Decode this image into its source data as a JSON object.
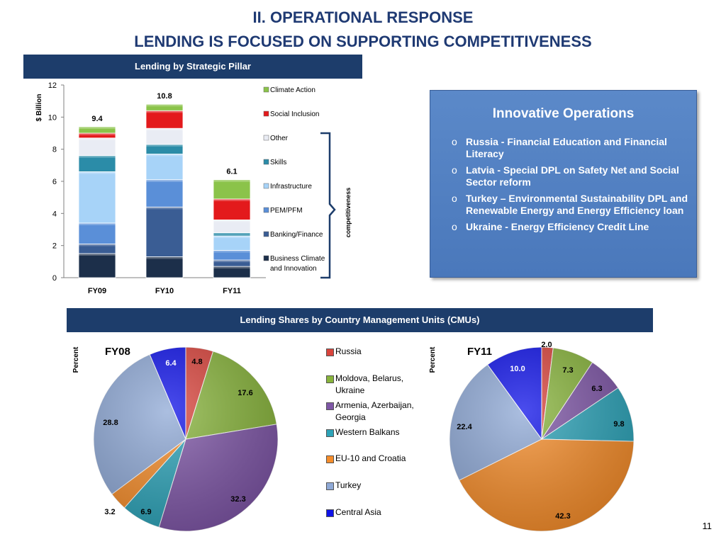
{
  "slide": {
    "title_line1": "II. OPERATIONAL RESPONSE",
    "title_line2": "LENDING IS FOCUSED ON SUPPORTING COMPETITIVENESS",
    "page_number": "11"
  },
  "bar_section": {
    "header": "Lending by Strategic Pillar",
    "brace_label": "competitiveness",
    "colors": {
      "Business Climate and Innovation": "#1c2f4a",
      "Banking/Finance": "#3a5d94",
      "PEM/PFM": "#5a8fd8",
      "Infrastructure": "#a7d3f8",
      "Skills": "#2b8ca8",
      "Other": "#e9ecf4",
      "Social Inclusion": "#e31a1c",
      "Climate Action": "#8bc34a"
    }
  },
  "pie_section": {
    "header": "Lending Shares by Country Management Units (CMUs)",
    "colors": {
      "Russia": "#d9443c",
      "Moldova, Belarus, Ukraine": "#88b43c",
      "Armenia, Azerbaijan, Georgia": "#7e56a6",
      "Western Balkans": "#2da3b8",
      "EU-10 and Croatia": "#f58d2b",
      "Turkey": "#8fa9d6",
      "Central Asia": "#0f12e8"
    }
  },
  "innovative": {
    "title": "Innovative Operations",
    "bullet_glyph": "o",
    "items": [
      "Russia - Financial Education and Financial Literacy",
      "Latvia - Special DPL on Safety Net and Social Sector reform",
      "Turkey – Environmental Sustainability DPL and Renewable Energy and Energy Efficiency loan",
      "Ukraine - Energy Efficiency Credit Line"
    ]
  },
  "chart_data": [
    {
      "type": "bar",
      "stacked": true,
      "title": "",
      "xlabel": "",
      "ylabel": "$ Billion",
      "ylim": [
        0,
        12
      ],
      "yticks": [
        0,
        2,
        4,
        6,
        8,
        10,
        12
      ],
      "categories": [
        "FY09",
        "FY10",
        "FY11"
      ],
      "totals": [
        "9.4",
        "10.8",
        "6.1"
      ],
      "legend_position": "right",
      "series": [
        {
          "name": "Business Climate and Innovation",
          "values": [
            1.5,
            1.3,
            0.7
          ]
        },
        {
          "name": "Banking/Finance",
          "values": [
            0.6,
            3.1,
            0.4
          ]
        },
        {
          "name": "PEM/PFM",
          "values": [
            1.3,
            1.7,
            0.6
          ]
        },
        {
          "name": "Infrastructure",
          "values": [
            3.2,
            1.6,
            0.9
          ]
        },
        {
          "name": "Skills",
          "values": [
            1.0,
            0.6,
            0.2
          ]
        },
        {
          "name": "Other",
          "values": [
            1.1,
            1.0,
            0.8
          ]
        },
        {
          "name": "Social Inclusion",
          "values": [
            0.3,
            1.1,
            1.3
          ]
        },
        {
          "name": "Climate Action",
          "values": [
            0.4,
            0.4,
            1.2
          ]
        }
      ]
    },
    {
      "type": "pie",
      "title": "FY08",
      "ylabel": "Percent",
      "slices": [
        {
          "name": "Russia",
          "value": 4.8
        },
        {
          "name": "Moldova, Belarus, Ukraine",
          "value": 17.6
        },
        {
          "name": "Armenia, Azerbaijan, Georgia",
          "value": 32.3
        },
        {
          "name": "Western Balkans",
          "value": 6.9
        },
        {
          "name": "EU-10 and Croatia",
          "value": 3.2
        },
        {
          "name": "Turkey",
          "value": 28.8
        },
        {
          "name": "Central Asia",
          "value": 6.4
        }
      ]
    },
    {
      "type": "pie",
      "title": "FY11",
      "ylabel": "Percent",
      "slices": [
        {
          "name": "Russia",
          "value": 2.0
        },
        {
          "name": "Moldova, Belarus, Ukraine",
          "value": 7.3
        },
        {
          "name": "Armenia, Azerbaijan, Georgia",
          "value": 6.3
        },
        {
          "name": "Western Balkans",
          "value": 9.8
        },
        {
          "name": "EU-10 and Croatia",
          "value": 42.3
        },
        {
          "name": "Turkey",
          "value": 22.4
        },
        {
          "name": "Central Asia",
          "value": 10.0
        }
      ]
    }
  ]
}
